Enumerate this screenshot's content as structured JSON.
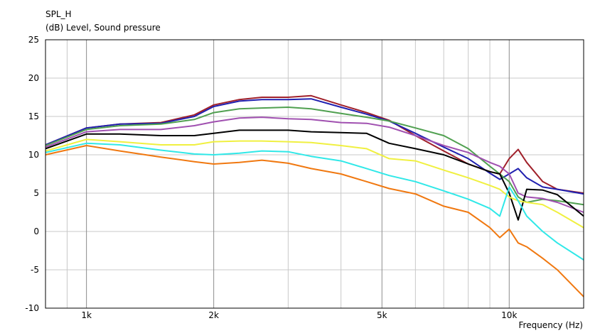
{
  "chart_data": {
    "type": "line",
    "title": "SPL_H",
    "ylabel": "(dB)  Level, Sound pressure",
    "xlabel": "Frequency  (Hz)",
    "x_scale": "log",
    "xlim": [
      800,
      15000
    ],
    "ylim": [
      -10,
      25
    ],
    "y_ticks": [
      25,
      20,
      15,
      10,
      5,
      0,
      -5,
      -10
    ],
    "y_tick_labels": [
      "25",
      "20",
      "15",
      "10",
      "5",
      "0",
      "-5",
      "-10"
    ],
    "x_ticks": [
      1000,
      2000,
      5000,
      10000
    ],
    "x_tick_labels": [
      "1k",
      "2k",
      "5k",
      "10k"
    ],
    "grid": true,
    "legend": "none",
    "x": [
      800,
      1000,
      1200,
      1500,
      1800,
      2000,
      2300,
      2600,
      3000,
      3400,
      4000,
      4600,
      5200,
      6000,
      7000,
      8000,
      9000,
      9500,
      10000,
      10500,
      11000,
      12000,
      13000,
      15000
    ],
    "series": [
      {
        "color": "#a0202a",
        "values": [
          11.3,
          13.5,
          14.0,
          14.2,
          15.2,
          16.5,
          17.2,
          17.5,
          17.5,
          17.7,
          16.5,
          15.5,
          14.5,
          12.5,
          10.5,
          8.8,
          7.8,
          7.5,
          9.5,
          10.7,
          9.0,
          6.5,
          5.5,
          5.0
        ]
      },
      {
        "color": "#2020b0",
        "values": [
          11.3,
          13.5,
          14.0,
          14.1,
          15.0,
          16.3,
          17.0,
          17.2,
          17.2,
          17.3,
          16.2,
          15.3,
          14.4,
          12.8,
          11.0,
          9.5,
          7.6,
          6.8,
          7.5,
          8.2,
          7.0,
          5.8,
          5.5,
          4.9
        ]
      },
      {
        "color": "#50a050",
        "values": [
          11.2,
          13.3,
          13.8,
          14.0,
          14.6,
          15.5,
          16.0,
          16.1,
          16.2,
          16.0,
          15.4,
          14.9,
          14.4,
          13.5,
          12.5,
          10.8,
          8.5,
          7.5,
          6.5,
          4.5,
          3.8,
          4.2,
          4.0,
          3.5
        ]
      },
      {
        "color": "#a050b0",
        "values": [
          11.0,
          13.0,
          13.3,
          13.3,
          13.8,
          14.3,
          14.8,
          14.9,
          14.7,
          14.6,
          14.2,
          14.1,
          13.6,
          12.5,
          11.2,
          10.3,
          9.0,
          8.5,
          7.5,
          5.0,
          4.5,
          4.3,
          3.8,
          2.5
        ]
      },
      {
        "color": "#000000",
        "values": [
          10.8,
          12.7,
          12.7,
          12.5,
          12.5,
          12.8,
          13.2,
          13.2,
          13.2,
          13.0,
          12.9,
          12.8,
          11.5,
          10.8,
          10.0,
          8.8,
          7.8,
          7.5,
          5.0,
          1.5,
          5.5,
          5.4,
          4.8,
          2.0
        ]
      },
      {
        "color": "#f0f040",
        "values": [
          10.5,
          12.0,
          11.7,
          11.3,
          11.3,
          11.7,
          11.8,
          11.8,
          11.7,
          11.6,
          11.2,
          10.8,
          9.5,
          9.2,
          8.0,
          7.0,
          6.0,
          5.5,
          4.5,
          4.0,
          3.8,
          3.5,
          2.5,
          0.5
        ]
      },
      {
        "color": "#30e8e8",
        "values": [
          10.3,
          11.5,
          11.3,
          10.6,
          10.1,
          10.0,
          10.2,
          10.5,
          10.4,
          9.8,
          9.2,
          8.2,
          7.3,
          6.5,
          5.3,
          4.2,
          3.0,
          2.0,
          5.8,
          4.0,
          2.0,
          0.0,
          -1.5,
          -3.7
        ]
      },
      {
        "color": "#f07810",
        "values": [
          10.0,
          11.2,
          10.5,
          9.7,
          9.1,
          8.8,
          9.0,
          9.3,
          8.9,
          8.2,
          7.5,
          6.5,
          5.6,
          4.9,
          3.3,
          2.5,
          0.5,
          -0.8,
          0.3,
          -1.5,
          -2.0,
          -3.5,
          -5.0,
          -8.5
        ]
      }
    ]
  }
}
